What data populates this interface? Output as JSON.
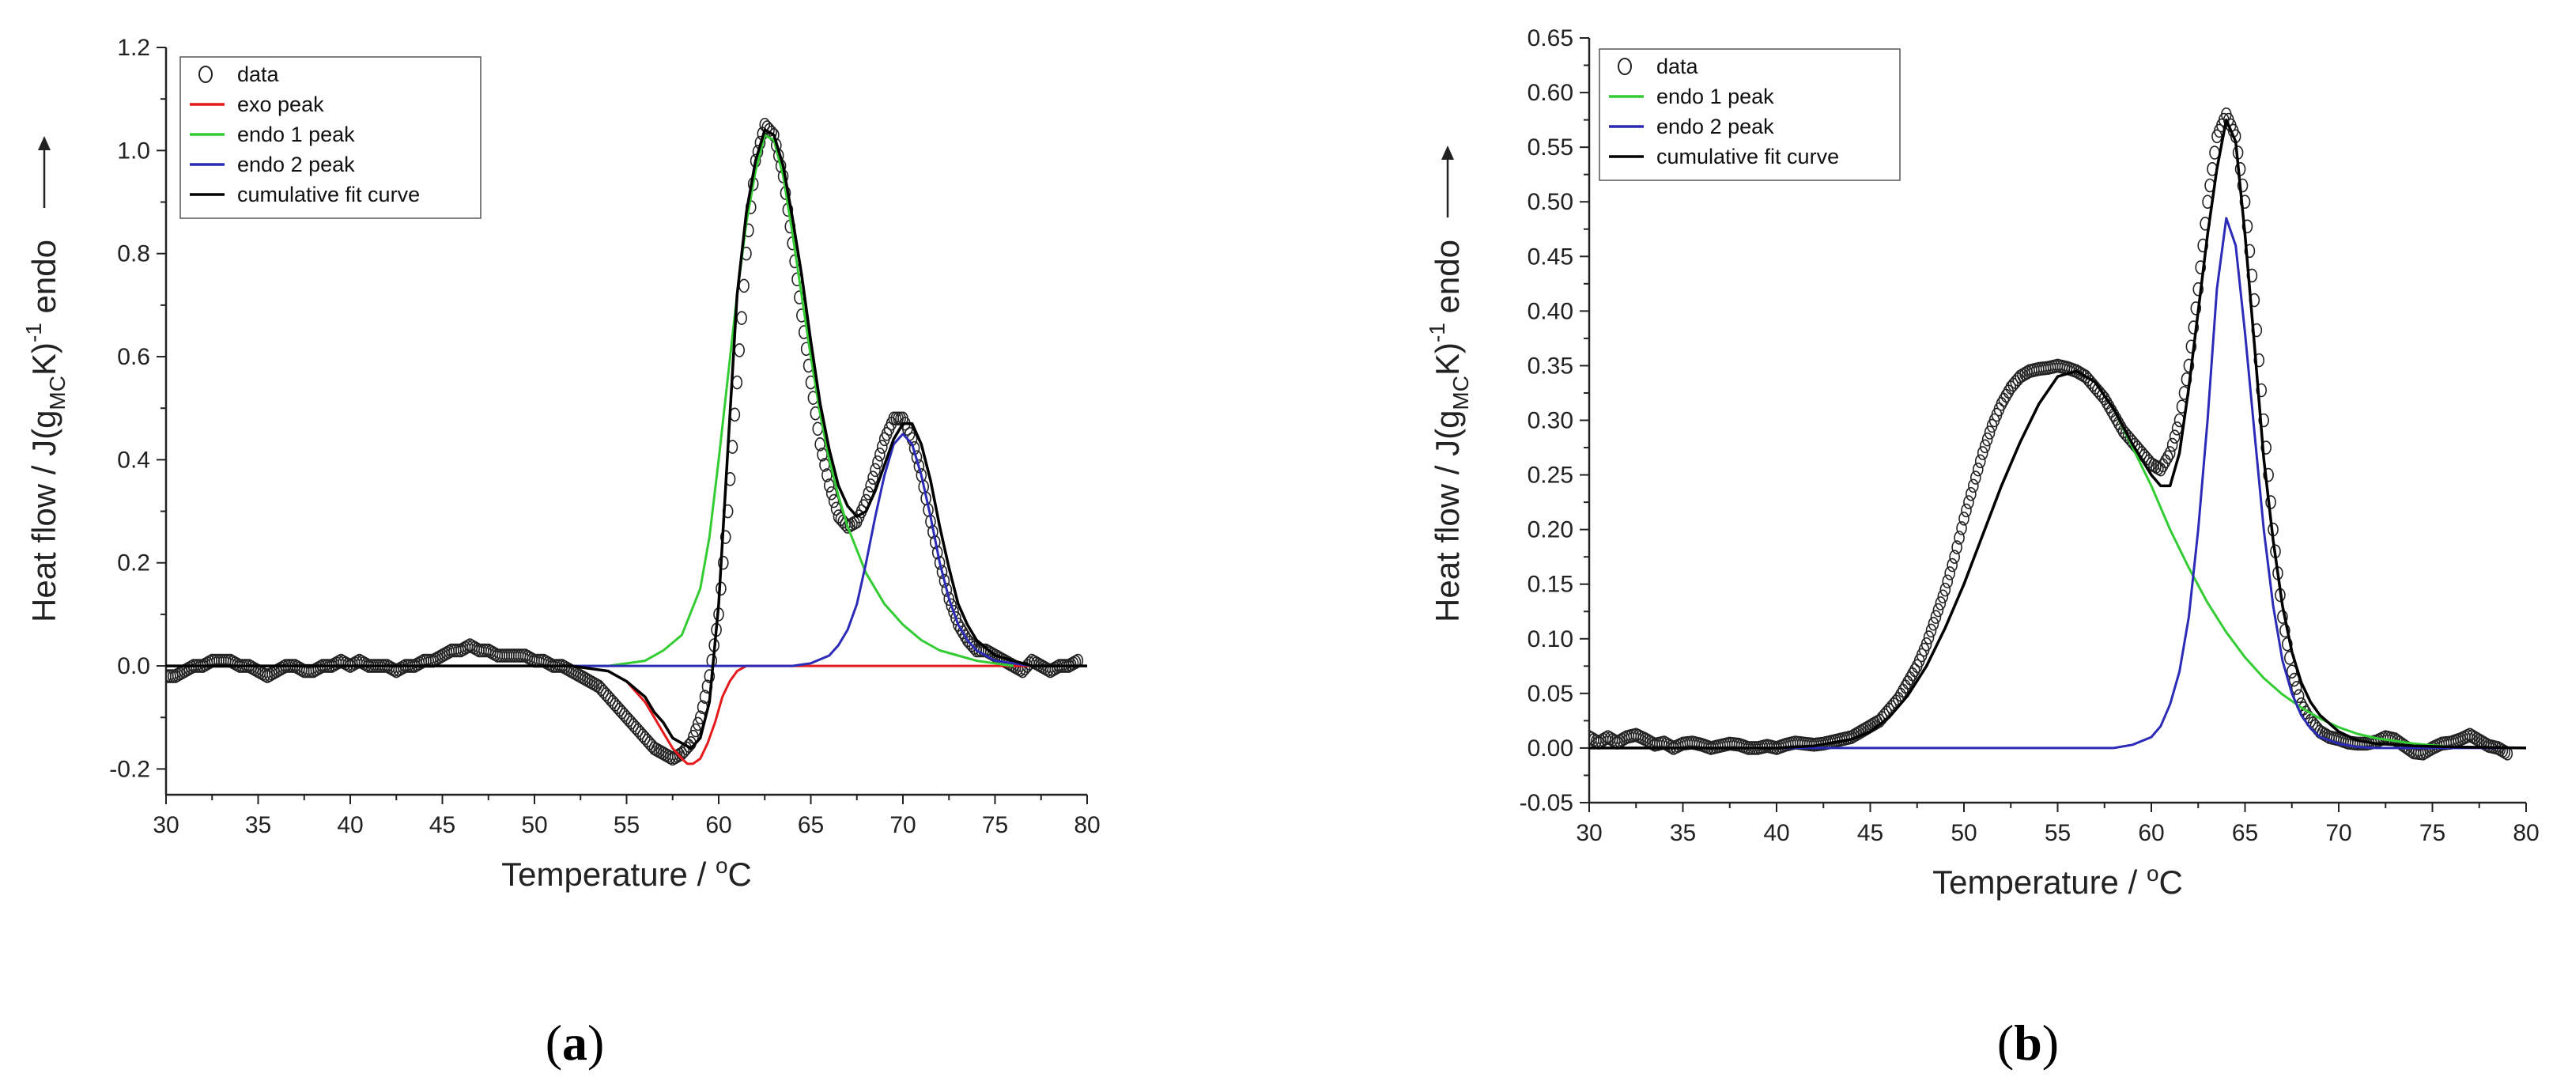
{
  "chart_data": [
    {
      "type": "line",
      "caption": "(a)",
      "caption_letter": "a",
      "xlabel": "Temperature / °C",
      "xlabel_parts": [
        "Temperature / ",
        "o",
        "C"
      ],
      "ylabel": "Heat flow / J(gMCK)-1 endo →",
      "ylabel_parts": [
        "Heat flow / J(g",
        "MC",
        "K)",
        "-1",
        "  endo"
      ],
      "xlim": [
        30,
        80
      ],
      "ylim": [
        -0.25,
        1.2
      ],
      "xticks": [
        30,
        35,
        40,
        45,
        50,
        55,
        60,
        65,
        70,
        75,
        80
      ],
      "yticks": [
        -0.2,
        0.0,
        0.2,
        0.4,
        0.6,
        0.8,
        1.0,
        1.2
      ],
      "ytick_labels": [
        "-0.2",
        "0.0",
        "0.2",
        "0.4",
        "0.6",
        "0.8",
        "1.0",
        "1.2"
      ],
      "legend": {
        "placement": "top-left",
        "entries": [
          {
            "label": "data",
            "kind": "marker"
          },
          {
            "label": "exo peak",
            "color": "#e41a1c"
          },
          {
            "label": "endo 1 peak",
            "color": "#33cc33"
          },
          {
            "label": "endo 2 peak",
            "color": "#2b2bb8"
          },
          {
            "label": "cumulative fit curve",
            "color": "#000000"
          }
        ]
      },
      "series": [
        {
          "name": "data",
          "kind": "marker",
          "x": [
            30,
            30.5,
            31,
            31.5,
            32,
            32.5,
            33,
            33.5,
            34,
            34.5,
            35,
            35.5,
            36,
            36.5,
            37,
            37.5,
            38,
            38.5,
            39,
            39.5,
            40,
            40.5,
            41,
            41.5,
            42,
            42.5,
            43,
            43.5,
            44,
            44.5,
            45,
            45.5,
            46,
            46.5,
            47,
            47.5,
            48,
            48.5,
            49,
            49.5,
            50,
            50.5,
            51,
            51.5,
            52,
            52.5,
            53,
            53.5,
            54,
            54.5,
            55,
            55.5,
            56,
            56.5,
            57,
            57.5,
            58,
            58.5,
            59,
            59.5,
            60,
            60.5,
            61,
            61.5,
            62,
            62.5,
            63,
            63.5,
            64,
            64.5,
            65,
            65.5,
            66,
            66.5,
            67,
            67.5,
            68,
            68.5,
            69,
            69.5,
            70,
            70.5,
            71,
            71.5,
            72,
            72.5,
            73,
            73.5,
            74,
            74.5,
            75,
            75.5,
            76,
            76.5,
            77,
            77.5,
            78,
            78.5,
            79,
            79.5
          ],
          "y": [
            -0.02,
            -0.02,
            -0.01,
            0,
            0,
            0.01,
            0.01,
            0.01,
            0,
            0,
            -0.01,
            -0.02,
            -0.01,
            0,
            0,
            -0.01,
            -0.01,
            0,
            0,
            0.01,
            0,
            0.01,
            0,
            0,
            0,
            -0.01,
            0,
            0,
            0.01,
            0.01,
            0.02,
            0.03,
            0.03,
            0.04,
            0.03,
            0.03,
            0.02,
            0.02,
            0.02,
            0.02,
            0.01,
            0.01,
            0,
            0,
            -0.01,
            -0.02,
            -0.03,
            -0.04,
            -0.06,
            -0.08,
            -0.1,
            -0.12,
            -0.14,
            -0.16,
            -0.17,
            -0.18,
            -0.17,
            -0.15,
            -0.1,
            -0.02,
            0.1,
            0.3,
            0.55,
            0.8,
            0.98,
            1.05,
            1.03,
            0.95,
            0.82,
            0.68,
            0.55,
            0.43,
            0.35,
            0.29,
            0.27,
            0.28,
            0.32,
            0.38,
            0.44,
            0.48,
            0.48,
            0.44,
            0.37,
            0.28,
            0.2,
            0.13,
            0.08,
            0.05,
            0.03,
            0.03,
            0.02,
            0.01,
            0,
            -0.01,
            0.01,
            0,
            -0.01,
            0,
            0,
            0.01
          ]
        },
        {
          "name": "exo peak",
          "color": "#e41a1c",
          "x": [
            50,
            52,
            54,
            55,
            56,
            56.5,
            57,
            57.5,
            58,
            58.3,
            58.6,
            59,
            59.4,
            59.8,
            60.2,
            60.6,
            61,
            61.5,
            62,
            64,
            66,
            70,
            75,
            79
          ],
          "y": [
            0,
            0,
            -0.01,
            -0.03,
            -0.07,
            -0.1,
            -0.13,
            -0.16,
            -0.18,
            -0.19,
            -0.19,
            -0.18,
            -0.15,
            -0.11,
            -0.06,
            -0.03,
            -0.01,
            0,
            0,
            0,
            0,
            0,
            0,
            0
          ]
        },
        {
          "name": "endo 1 peak",
          "color": "#33cc33",
          "x": [
            52,
            54,
            56,
            57,
            58,
            59,
            59.5,
            60,
            60.5,
            61,
            61.5,
            62,
            62.5,
            63,
            63.5,
            64,
            64.5,
            65,
            65.5,
            66,
            66.5,
            67,
            68,
            69,
            70,
            71,
            72,
            73,
            74,
            75,
            76
          ],
          "y": [
            0,
            0,
            0.01,
            0.03,
            0.06,
            0.15,
            0.25,
            0.4,
            0.56,
            0.72,
            0.86,
            0.96,
            1.03,
            1.02,
            0.95,
            0.84,
            0.72,
            0.6,
            0.49,
            0.4,
            0.33,
            0.27,
            0.18,
            0.12,
            0.08,
            0.05,
            0.03,
            0.02,
            0.01,
            0.005,
            0
          ]
        },
        {
          "name": "endo 2 peak",
          "color": "#2b2bb8",
          "x": [
            50,
            60,
            64,
            65,
            66,
            66.5,
            67,
            67.5,
            68,
            68.5,
            69,
            69.5,
            70,
            70.5,
            71,
            71.5,
            72,
            72.5,
            73,
            73.5,
            74,
            75,
            76,
            77
          ],
          "y": [
            0,
            0,
            0,
            0.005,
            0.02,
            0.04,
            0.07,
            0.12,
            0.2,
            0.29,
            0.37,
            0.43,
            0.45,
            0.43,
            0.37,
            0.29,
            0.2,
            0.13,
            0.08,
            0.05,
            0.03,
            0.01,
            0.005,
            0
          ]
        },
        {
          "name": "cumulative fit curve",
          "color": "#000000",
          "x": [
            30,
            50,
            52,
            54,
            55,
            56,
            56.5,
            57,
            57.5,
            58,
            58.5,
            59,
            59.5,
            60,
            60.5,
            61,
            61.5,
            62,
            62.5,
            63,
            63.5,
            64,
            64.5,
            65,
            65.5,
            66,
            66.5,
            67,
            67.5,
            68,
            68.5,
            69,
            69.5,
            70,
            70.5,
            71,
            71.5,
            72,
            72.5,
            73,
            73.5,
            74,
            75,
            76,
            77,
            78,
            79,
            80
          ],
          "y": [
            0,
            0,
            0,
            -0.01,
            -0.03,
            -0.06,
            -0.09,
            -0.11,
            -0.14,
            -0.15,
            -0.16,
            -0.14,
            -0.07,
            0.12,
            0.42,
            0.72,
            0.88,
            0.98,
            1.04,
            1.03,
            0.97,
            0.87,
            0.76,
            0.63,
            0.51,
            0.42,
            0.35,
            0.31,
            0.29,
            0.3,
            0.34,
            0.39,
            0.44,
            0.47,
            0.47,
            0.43,
            0.36,
            0.27,
            0.19,
            0.12,
            0.08,
            0.05,
            0.02,
            0.01,
            0,
            0,
            0,
            0
          ]
        }
      ]
    },
    {
      "type": "line",
      "caption": "(b)",
      "caption_letter": "b",
      "xlabel": "Temperature / °C",
      "xlabel_parts": [
        "Temperature / ",
        "o",
        "C"
      ],
      "ylabel": "Heat flow / J(gMCK)-1 endo →",
      "ylabel_parts": [
        "Heat flow / J(g",
        "MC",
        "K)",
        "-1",
        "  endo"
      ],
      "xlim": [
        30,
        80
      ],
      "ylim": [
        -0.05,
        0.65
      ],
      "xticks": [
        30,
        35,
        40,
        45,
        50,
        55,
        60,
        65,
        70,
        75,
        80
      ],
      "yticks": [
        -0.05,
        0,
        0.05,
        0.1,
        0.15,
        0.2,
        0.25,
        0.3,
        0.35,
        0.4,
        0.45,
        0.5,
        0.55,
        0.6,
        0.65
      ],
      "ytick_labels": [
        "-0.05",
        "0.00",
        "0.05",
        "0.10",
        "0.15",
        "0.20",
        "0.25",
        "0.30",
        "0.35",
        "0.40",
        "0.45",
        "0.50",
        "0.55",
        "0.60",
        "0.65"
      ],
      "legend": {
        "placement": "top-left",
        "entries": [
          {
            "label": "data",
            "kind": "marker"
          },
          {
            "label": "endo 1 peak",
            "color": "#33cc33"
          },
          {
            "label": "endo 2 peak",
            "color": "#2b2bb8"
          },
          {
            "label": "cumulative fit curve",
            "color": "#000000"
          }
        ]
      },
      "series": [
        {
          "name": "data",
          "kind": "marker",
          "x": [
            30,
            30.5,
            31,
            31.5,
            32,
            32.5,
            33,
            33.5,
            34,
            34.5,
            35,
            35.5,
            36,
            36.5,
            37,
            37.5,
            38,
            38.5,
            39,
            39.5,
            40,
            40.5,
            41,
            41.5,
            42,
            42.5,
            43,
            43.5,
            44,
            44.5,
            45,
            45.5,
            46,
            46.5,
            47,
            47.5,
            48,
            48.5,
            49,
            49.5,
            50,
            50.5,
            51,
            51.5,
            52,
            52.5,
            53,
            53.5,
            54,
            54.5,
            55,
            55.5,
            56,
            56.5,
            57,
            57.5,
            58,
            58.5,
            59,
            59.5,
            60,
            60.5,
            61,
            61.5,
            62,
            62.5,
            63,
            63.5,
            64,
            64.5,
            65,
            65.5,
            66,
            66.5,
            67,
            67.5,
            68,
            68.5,
            69,
            69.5,
            70,
            70.5,
            71,
            71.5,
            72,
            72.5,
            73,
            73.5,
            74,
            74.5,
            75,
            75.5,
            76,
            76.5,
            77,
            77.5,
            78,
            78.5,
            79
          ],
          "y": [
            0.01,
            0.005,
            0.01,
            0.005,
            0.01,
            0.012,
            0.008,
            0.003,
            0.005,
            0,
            0.004,
            0.005,
            0.003,
            0,
            0.002,
            0.004,
            0.003,
            0,
            0,
            0.002,
            0,
            0.003,
            0.005,
            0.004,
            0.003,
            0.004,
            0.006,
            0.008,
            0.01,
            0.015,
            0.02,
            0.025,
            0.035,
            0.045,
            0.06,
            0.075,
            0.095,
            0.12,
            0.145,
            0.175,
            0.21,
            0.24,
            0.27,
            0.295,
            0.315,
            0.33,
            0.34,
            0.345,
            0.347,
            0.348,
            0.35,
            0.348,
            0.345,
            0.34,
            0.33,
            0.32,
            0.305,
            0.29,
            0.28,
            0.27,
            0.26,
            0.255,
            0.27,
            0.3,
            0.35,
            0.42,
            0.5,
            0.56,
            0.58,
            0.56,
            0.5,
            0.41,
            0.3,
            0.2,
            0.12,
            0.07,
            0.04,
            0.025,
            0.015,
            0.01,
            0.008,
            0.005,
            0.004,
            0.004,
            0.006,
            0.01,
            0.008,
            0.002,
            -0.004,
            -0.005,
            0,
            0.004,
            0.005,
            0.008,
            0.012,
            0.007,
            0.002,
            0,
            -0.005
          ]
        },
        {
          "name": "endo 1 peak",
          "color": "#33cc33",
          "x": [
            30,
            40,
            42,
            44,
            45,
            46,
            47,
            48,
            49,
            50,
            51,
            52,
            53,
            54,
            55,
            56,
            57,
            58,
            59,
            60,
            61,
            62,
            63,
            64,
            65,
            66,
            67,
            68,
            69,
            70,
            71,
            72,
            74,
            76,
            80
          ],
          "y": [
            0,
            0,
            0.002,
            0.008,
            0.015,
            0.028,
            0.048,
            0.075,
            0.11,
            0.15,
            0.195,
            0.24,
            0.28,
            0.315,
            0.34,
            0.345,
            0.335,
            0.31,
            0.275,
            0.24,
            0.2,
            0.165,
            0.133,
            0.106,
            0.083,
            0.064,
            0.049,
            0.037,
            0.027,
            0.019,
            0.013,
            0.009,
            0.004,
            0.001,
            0
          ]
        },
        {
          "name": "endo 2 peak",
          "color": "#2b2bb8",
          "x": [
            30,
            58,
            59,
            60,
            60.5,
            61,
            61.5,
            62,
            62.5,
            63,
            63.5,
            64,
            64.5,
            65,
            65.5,
            66,
            66.5,
            67,
            67.5,
            68,
            68.5,
            69,
            70,
            71,
            72,
            74,
            80
          ],
          "y": [
            0,
            0,
            0.003,
            0.01,
            0.02,
            0.04,
            0.07,
            0.12,
            0.2,
            0.3,
            0.42,
            0.485,
            0.46,
            0.38,
            0.29,
            0.2,
            0.13,
            0.08,
            0.05,
            0.03,
            0.018,
            0.01,
            0.004,
            0.001,
            0,
            0,
            0
          ]
        },
        {
          "name": "cumulative fit curve",
          "color": "#000000",
          "x": [
            30,
            40,
            42,
            44,
            45,
            46,
            47,
            48,
            49,
            50,
            51,
            52,
            53,
            54,
            55,
            56,
            57,
            58,
            59,
            60,
            60.5,
            61,
            61.5,
            62,
            62.5,
            63,
            63.5,
            64,
            64.5,
            65,
            65.5,
            66,
            66.5,
            67,
            67.5,
            68,
            68.5,
            69,
            70,
            71,
            72,
            74,
            76,
            80
          ],
          "y": [
            0,
            0,
            0.002,
            0.008,
            0.015,
            0.028,
            0.048,
            0.075,
            0.11,
            0.15,
            0.195,
            0.24,
            0.28,
            0.315,
            0.34,
            0.345,
            0.335,
            0.31,
            0.278,
            0.25,
            0.24,
            0.24,
            0.27,
            0.33,
            0.4,
            0.47,
            0.53,
            0.575,
            0.555,
            0.47,
            0.37,
            0.265,
            0.19,
            0.13,
            0.088,
            0.06,
            0.042,
            0.03,
            0.015,
            0.007,
            0.004,
            0.002,
            0.001,
            0
          ]
        }
      ]
    }
  ]
}
